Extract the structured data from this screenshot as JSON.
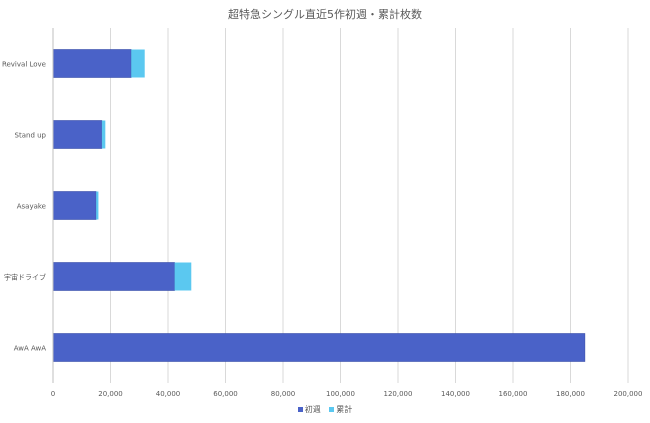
{
  "chart_data": {
    "type": "bar",
    "orientation": "horizontal",
    "stacked": true,
    "title": "超特急シングル直近5作初週・累計枚数",
    "categories": [
      "Revival Love",
      "Stand up",
      "Asayake",
      "宇宙ドライブ",
      "AwA AwA"
    ],
    "series": [
      {
        "name": "初週",
        "color": "#4a62c8",
        "values": [
          27200,
          17000,
          15000,
          42300,
          185000
        ]
      },
      {
        "name": "累計",
        "color": "#5bc8f0",
        "values": [
          4700,
          1200,
          800,
          5800,
          0
        ]
      }
    ],
    "xlim": [
      0,
      200000
    ],
    "x_ticks": [
      "0",
      "20,000",
      "40,000",
      "60,000",
      "80,000",
      "100,000",
      "120,000",
      "140,000",
      "160,000",
      "180,000",
      "200,000"
    ],
    "grid": true,
    "legend": "bottom"
  }
}
